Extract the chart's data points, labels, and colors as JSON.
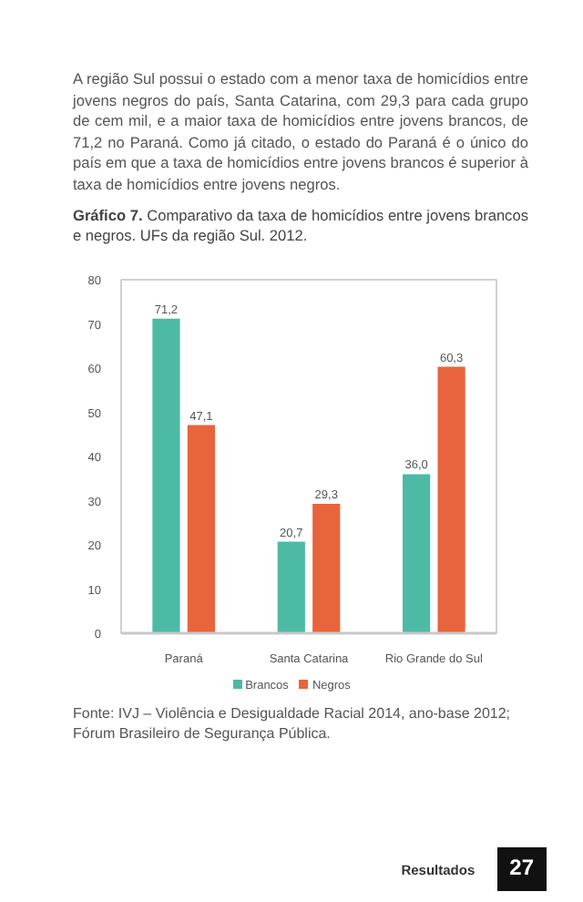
{
  "chart_data": {
    "type": "bar",
    "title": "Gráfico 7. Comparativo da taxa de homicídios entre jovens brancos e negros. UFs da região Sul. 2012.",
    "categories": [
      "Paraná",
      "Santa Catarina",
      "Rio Grande do Sul"
    ],
    "series": [
      {
        "name": "Brancos",
        "color": "#4dbaa5",
        "values": [
          71.2,
          20.7,
          36.0
        ],
        "value_labels": [
          "71,2",
          "20,7",
          "36,0"
        ]
      },
      {
        "name": "Negros",
        "color": "#e8643c",
        "values": [
          47.1,
          29.3,
          60.3
        ],
        "value_labels": [
          "47,1",
          "29,3",
          "60,3"
        ]
      }
    ],
    "ylim": [
      0,
      80
    ],
    "yticks": [
      0,
      10,
      20,
      30,
      40,
      50,
      60,
      70,
      80
    ],
    "grid": false,
    "legend": "bottom",
    "annotations": [
      "A região Sul possui o estado com a menor taxa de homicídios entre jovens negros do país, Santa Catarina, com 29,3 para cada grupo de cem mil, e a maior taxa de homicídios entre jovens brancos, de 71,2 no Paraná. Como já citado, o estado do Paraná é o único do país em que a taxa de homicídios entre jovens brancos é superior à taxa de homicídios entre jovens negros.",
      "Fonte: IVJ – Violência e Desigualdade Racial 2014, ano-base 2012; Fórum Brasileiro de Segurança Pública.",
      "Resultados",
      "27"
    ]
  }
}
